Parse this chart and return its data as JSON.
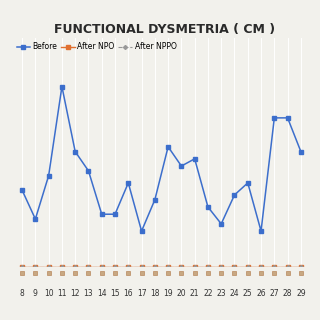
{
  "title": "FUNCTIONAL DYSMETRIA ( CM )",
  "x": [
    8,
    9,
    10,
    11,
    12,
    13,
    14,
    15,
    16,
    17,
    18,
    19,
    20,
    21,
    22,
    23,
    24,
    25,
    26,
    27,
    28,
    29
  ],
  "before": [
    3.2,
    2.0,
    3.8,
    7.5,
    4.8,
    4.0,
    2.2,
    2.2,
    3.5,
    1.5,
    2.8,
    5.0,
    4.2,
    4.5,
    2.5,
    1.8,
    3.0,
    3.5,
    1.5,
    6.2,
    6.2,
    4.8
  ],
  "after_npo": [
    0.0,
    0.0,
    0.0,
    0.0,
    0.0,
    0.0,
    0.0,
    0.0,
    0.0,
    0.0,
    0.0,
    0.0,
    0.0,
    0.0,
    0.0,
    0.0,
    0.0,
    0.0,
    0.0,
    0.0,
    0.0,
    0.0
  ],
  "after_nppo": [
    0.0,
    0.0,
    0.0,
    0.0,
    0.0,
    0.0,
    0.0,
    0.0,
    0.0,
    0.0,
    0.0,
    0.0,
    0.0,
    0.0,
    0.0,
    0.0,
    0.0,
    0.0,
    0.0,
    0.0,
    0.0,
    0.0
  ],
  "before_color": "#3C6ECC",
  "after_npo_color": "#E07030",
  "after_nppo_color": "#999999",
  "bg_color": "#F2F1EC",
  "grid_color": "#FFFFFF",
  "legend_labels": [
    "Before",
    "After NPO",
    "After NPPO"
  ],
  "xlim": [
    7.3,
    30.2
  ],
  "ylim": [
    0.0,
    9.5
  ],
  "title_fontsize": 9,
  "legend_fontsize": 5.5,
  "tick_fontsize": 5.5,
  "bottom_marker_color": "#C8A882",
  "bottom_marker_color2": "#B07848"
}
